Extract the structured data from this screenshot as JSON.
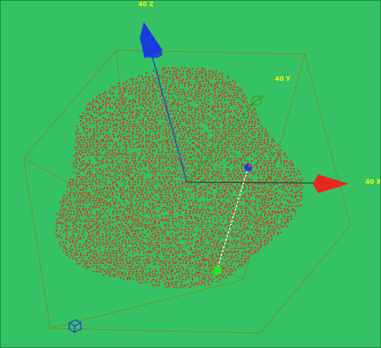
{
  "viewport": {
    "background_color": "#34c265",
    "point_color": "#e8281e",
    "box_color": "#7a8a1a"
  },
  "axes": {
    "z": {
      "label": "40 Z",
      "color": "#1a3be0",
      "label_color": "#f5f500"
    },
    "y": {
      "label": "40 Y",
      "color": "#3a9a1a",
      "label_color": "#f5f500"
    },
    "x": {
      "label": "40 X",
      "color": "#e8281e",
      "label_color": "#f5f500"
    }
  },
  "gizmo": {
    "handle_color": "#1a3be0",
    "probe_end_color": "#22e822",
    "probe_line_color": "#ffffff"
  },
  "corner_icon": "view-cube-icon"
}
